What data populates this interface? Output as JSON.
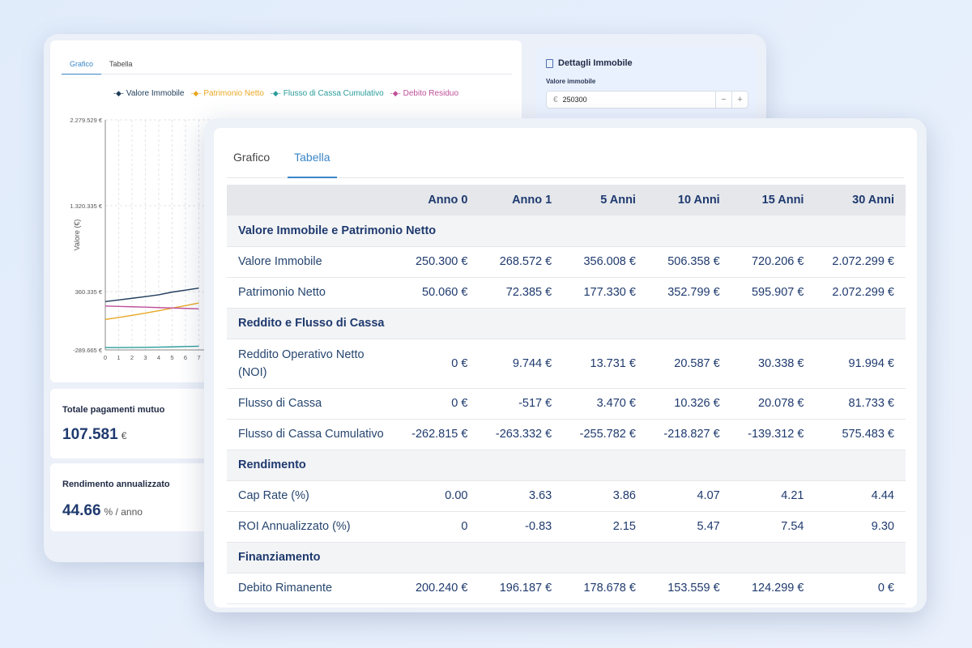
{
  "colors": {
    "valore": "#1f3c5a",
    "patrimonio": "#e8a824",
    "flusso": "#2a9d9b",
    "debito": "#c0509a",
    "accent": "#3a86c8",
    "text_primary": "#1f3a6e"
  },
  "back": {
    "tabs": [
      "Grafico",
      "Tabella"
    ],
    "legend": [
      {
        "label": "Valore Immobile",
        "color": "#1f3c5a"
      },
      {
        "label": "Patrimonio Netto",
        "color": "#e8a824"
      },
      {
        "label": "Flusso di Cassa Cumulativo",
        "color": "#2a9d9b"
      },
      {
        "label": "Debito Residuo",
        "color": "#c0509a"
      }
    ],
    "details": {
      "title": "Dettagli Immobile",
      "field_label": "Valore immobile",
      "currency": "€",
      "value": "250300",
      "minus": "−",
      "plus": "+"
    },
    "stats": [
      {
        "title": "Totale pagamenti mutuo",
        "value": "107.581",
        "unit": "€"
      },
      {
        "title": "Rendimento annualizzato",
        "value": "44.66",
        "unit": "% / anno"
      }
    ]
  },
  "chart_data": {
    "type": "line",
    "ylabel": "Valore (€)",
    "x": [
      0,
      1,
      2,
      3,
      4,
      5,
      6,
      7
    ],
    "x_tick_labels": [
      "0",
      "1",
      "2",
      "3",
      "4",
      "5",
      "6",
      "7"
    ],
    "y_tick_labels": [
      "2.279.529 €",
      "1.320.335 €",
      "360.335 €",
      "-289.665 €"
    ],
    "y_ticks": [
      2279529,
      1320335,
      360335,
      -289665
    ],
    "ylim": [
      -289665,
      2279529
    ],
    "series": [
      {
        "name": "Valore Immobile",
        "color": "#1f3c5a",
        "values": [
          250300,
          268572,
          287000,
          306000,
          326000,
          356008,
          378000,
          401000
        ]
      },
      {
        "name": "Patrimonio Netto",
        "color": "#e8a824",
        "values": [
          50060,
          72385,
          96000,
          121000,
          148000,
          177330,
          205000,
          235000
        ]
      },
      {
        "name": "Flusso di Cassa Cumulativo",
        "color": "#2a9d9b",
        "values": [
          -262815,
          -263332,
          -262000,
          -261000,
          -259000,
          -255782,
          -252000,
          -248000
        ]
      },
      {
        "name": "Debito Residuo",
        "color": "#c0509a",
        "values": [
          200240,
          196187,
          192000,
          188000,
          183000,
          178678,
          174000,
          169000
        ]
      }
    ]
  },
  "front": {
    "tabs": [
      "Grafico",
      "Tabella"
    ],
    "headers": [
      "",
      "Anno 0",
      "Anno 1",
      "5 Anni",
      "10 Anni",
      "15 Anni",
      "30 Anni"
    ],
    "rows": [
      {
        "type": "section",
        "label": "Valore Immobile e Patrimonio Netto"
      },
      {
        "type": "data",
        "label": "Valore Immobile",
        "values": [
          "250.300 €",
          "268.572 €",
          "356.008 €",
          "506.358 €",
          "720.206 €",
          "2.072.299 €"
        ]
      },
      {
        "type": "data",
        "label": "Patrimonio Netto",
        "values": [
          "50.060 €",
          "72.385 €",
          "177.330 €",
          "352.799 €",
          "595.907 €",
          "2.072.299 €"
        ]
      },
      {
        "type": "section",
        "label": "Reddito e Flusso di Cassa"
      },
      {
        "type": "data",
        "tall": true,
        "label": "Reddito Operativo Netto (NOI)",
        "values": [
          "0 €",
          "9.744 €",
          "13.731 €",
          "20.587 €",
          "30.338 €",
          "91.994 €"
        ]
      },
      {
        "type": "data",
        "label": "Flusso di Cassa",
        "values": [
          "0 €",
          "-517 €",
          "3.470 €",
          "10.326 €",
          "20.078 €",
          "81.733 €"
        ]
      },
      {
        "type": "data",
        "label": "Flusso di Cassa Cumulativo",
        "values": [
          "-262.815 €",
          "-263.332 €",
          "-255.782 €",
          "-218.827 €",
          "-139.312 €",
          "575.483 €"
        ]
      },
      {
        "type": "section",
        "label": "Rendimento"
      },
      {
        "type": "data",
        "label": "Cap Rate (%)",
        "values": [
          "0.00",
          "3.63",
          "3.86",
          "4.07",
          "4.21",
          "4.44"
        ]
      },
      {
        "type": "data",
        "label": "ROI Annualizzato (%)",
        "values": [
          "0",
          "-0.83",
          "2.15",
          "5.47",
          "7.54",
          "9.30"
        ]
      },
      {
        "type": "section",
        "label": "Finanziamento"
      },
      {
        "type": "data",
        "label": "Debito Rimanente",
        "values": [
          "200.240 €",
          "196.187 €",
          "178.678 €",
          "153.559 €",
          "124.299 €",
          "0 €"
        ]
      }
    ]
  }
}
